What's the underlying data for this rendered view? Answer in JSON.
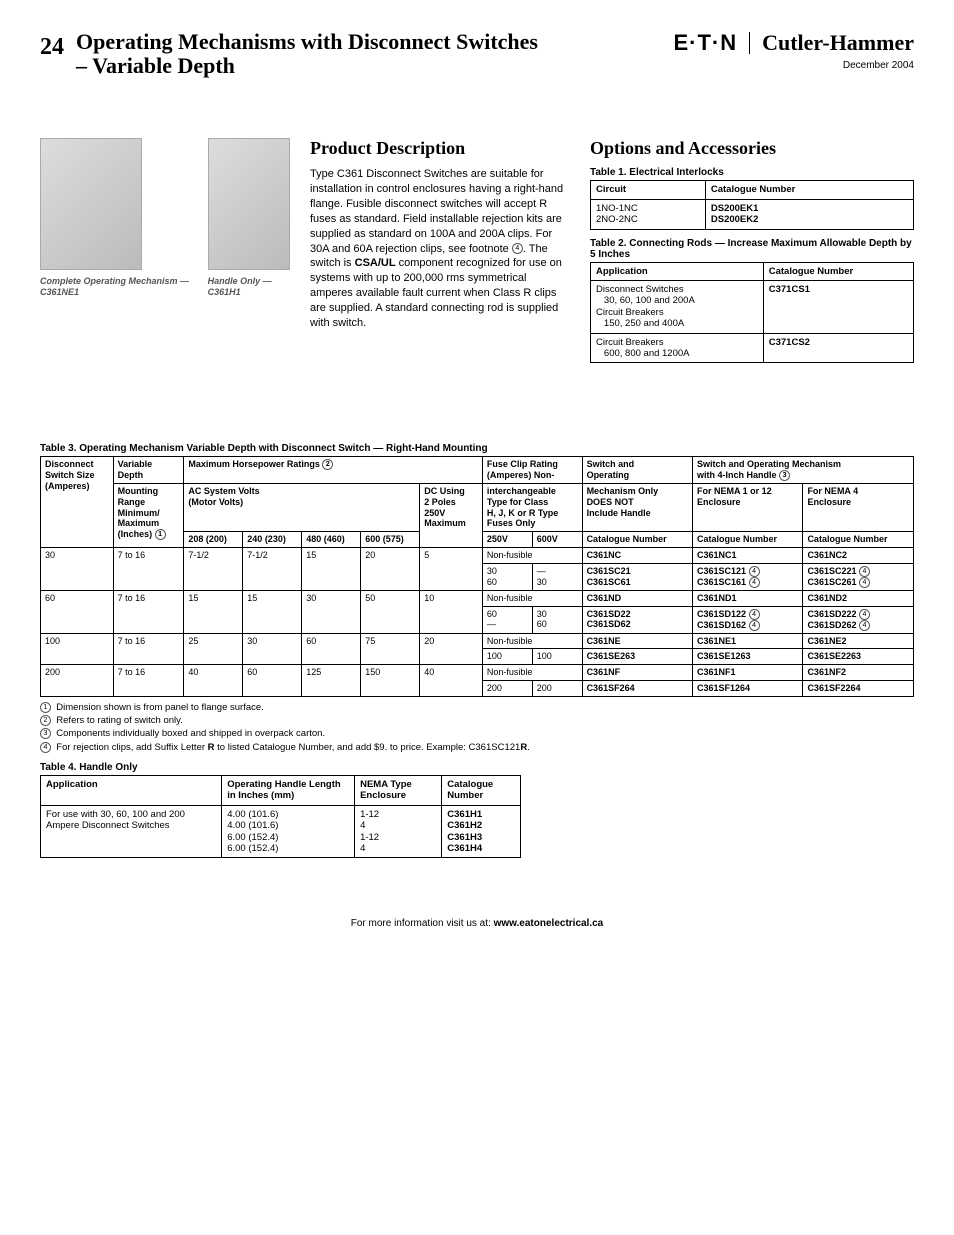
{
  "header": {
    "page_number": "24",
    "title_line1": "Operating Mechanisms with Disconnect Switches",
    "title_line2": "– Variable Depth",
    "eaton_logo_text": "E·T·N",
    "ch_logo_text": "Cutler-Hammer",
    "date": "December 2004"
  },
  "images": {
    "caption1": "Complete Operating Mechanism — C361NE1",
    "caption2": "Handle Only — C361H1"
  },
  "product_description": {
    "heading": "Product Description",
    "body_part1": "Type C361 Disconnect Switches are suitable for installation in control enclosures having a right-hand flange. Fusible disconnect switches will accept R fuses as standard. Field installable rejection kits are supplied as standard on 100A and 200A clips. For 30A and 60A rejection clips, see footnote ",
    "body_part2": ". The switch is ",
    "csa_ul": "CSA/UL",
    "body_part3": " component recognized for use on systems with up to 200,000 rms symmetrical amperes available fault current when Class R clips are supplied. A standard connecting rod is supplied with switch."
  },
  "options": {
    "heading": "Options and Accessories"
  },
  "table1": {
    "title": "Table 1. Electrical Interlocks",
    "headers": [
      "Circuit",
      "Catalogue Number"
    ],
    "rows": [
      [
        "1NO-1NC",
        "DS200EK1"
      ],
      [
        "2NO-2NC",
        "DS200EK2"
      ]
    ]
  },
  "table2": {
    "title": "Table 2. Connecting Rods — Increase Maximum Allowable Depth by 5 Inches",
    "headers": [
      "Application",
      "Catalogue Number"
    ],
    "rows": [
      {
        "app_lines": [
          "Disconnect Switches",
          "30, 60, 100 and 200A",
          "Circuit Breakers",
          "150, 250 and 400A"
        ],
        "cat": "C371CS1"
      },
      {
        "app_lines": [
          "Circuit Breakers",
          "600, 800 and 1200A"
        ],
        "cat": "C371CS2"
      }
    ]
  },
  "table3": {
    "title": "Table 3. Operating Mechanism Variable Depth with Disconnect Switch — Right-Hand Mounting",
    "col_headers": {
      "c1": "Disconnect Switch Size (Amperes)",
      "c2": "Variable Depth Mounting Range Minimum/Maximum (Inches)",
      "c3": "Maximum Horsepower Ratings",
      "c3a": "AC System Volts (Motor Volts)",
      "c3b": "DC Using 2 Poles 250V Maximum",
      "v1": "208 (200)",
      "v2": "240 (230)",
      "v3": "480 (460)",
      "v4": "600 (575)",
      "c4": "Fuse Clip Rating (Amperes) Non-interchangeable Type for Class H, J, K or R Type Fuses Only",
      "c4a": "250V",
      "c4b": "600V",
      "c5": "Switch and Operating Mechanism Only DOES NOT Include Handle",
      "c5a": "Catalogue Number",
      "c6": "Switch and Operating Mechanism with 4-Inch Handle",
      "c6a": "For NEMA 1 or 12 Enclosure",
      "c6b": "For NEMA 4 Enclosure",
      "catnum": "Catalogue Number"
    },
    "rows": [
      {
        "amp": "30",
        "depth": "7 to 16",
        "hp": [
          "7-1/2",
          "7-1/2",
          "15",
          "20"
        ],
        "dc": "5",
        "sub": [
          {
            "v250": "Non-fusible",
            "v600": "",
            "m": "C361NC",
            "n12": "C361NC1",
            "n4": "C361NC2"
          },
          {
            "v250": "30\n60",
            "v600": "—\n30",
            "m": "C361SC21\nC361SC61",
            "n12": "C361SC121 ④\nC361SC161 ④",
            "n4": "C361SC221 ④\nC361SC261 ④"
          }
        ]
      },
      {
        "amp": "60",
        "depth": "7 to 16",
        "hp": [
          "15",
          "15",
          "30",
          "50"
        ],
        "dc": "10",
        "sub": [
          {
            "v250": "Non-fusible",
            "v600": "",
            "m": "C361ND",
            "n12": "C361ND1",
            "n4": "C361ND2"
          },
          {
            "v250": "60\n—",
            "v600": "30\n60",
            "m": "C361SD22\nC361SD62",
            "n12": "C361SD122 ④\nC361SD162 ④",
            "n4": "C361SD222 ④\nC361SD262 ④"
          }
        ]
      },
      {
        "amp": "100",
        "depth": "7 to 16",
        "hp": [
          "25",
          "30",
          "60",
          "75"
        ],
        "dc": "20",
        "sub": [
          {
            "v250": "Non-fusible",
            "v600": "",
            "m": "C361NE",
            "n12": "C361NE1",
            "n4": "C361NE2"
          },
          {
            "v250": "100",
            "v600": "100",
            "m": "C361SE263",
            "n12": "C361SE1263",
            "n4": "C361SE2263"
          }
        ]
      },
      {
        "amp": "200",
        "depth": "7 to 16",
        "hp": [
          "40",
          "60",
          "125",
          "150"
        ],
        "dc": "40",
        "sub": [
          {
            "v250": "Non-fusible",
            "v600": "",
            "m": "C361NF",
            "n12": "C361NF1",
            "n4": "C361NF2"
          },
          {
            "v250": "200",
            "v600": "200",
            "m": "C361SF264",
            "n12": "C361SF1264",
            "n4": "C361SF2264"
          }
        ]
      }
    ]
  },
  "footnotes": {
    "f1": "Dimension shown is from panel to flange surface.",
    "f2": "Refers to rating of switch only.",
    "f3": "Components individually boxed and shipped in overpack carton.",
    "f4_a": "For rejection clips, add Suffix Letter ",
    "f4_b": "R",
    "f4_c": " to listed Catalogue Number, and add $9. to price. Example: C361SC121",
    "f4_d": "R",
    "f4_e": "."
  },
  "table4": {
    "title": "Table 4. Handle Only",
    "headers": [
      "Application",
      "Operating Handle Length in Inches (mm)",
      "NEMA Type Enclosure",
      "Catalogue Number"
    ],
    "row": {
      "app": "For use with 30, 60, 100 and 200 Ampere Disconnect Switches",
      "len": [
        "4.00 (101.6)",
        "4.00 (101.6)",
        "6.00 (152.4)",
        "6.00 (152.4)"
      ],
      "nema": [
        "1-12",
        "4",
        "1-12",
        "4"
      ],
      "cat": [
        "C361H1",
        "C361H2",
        "C361H3",
        "C361H4"
      ]
    }
  },
  "footer": {
    "text": "For more information visit us at: ",
    "url": "www.eatonelectrical.ca"
  }
}
